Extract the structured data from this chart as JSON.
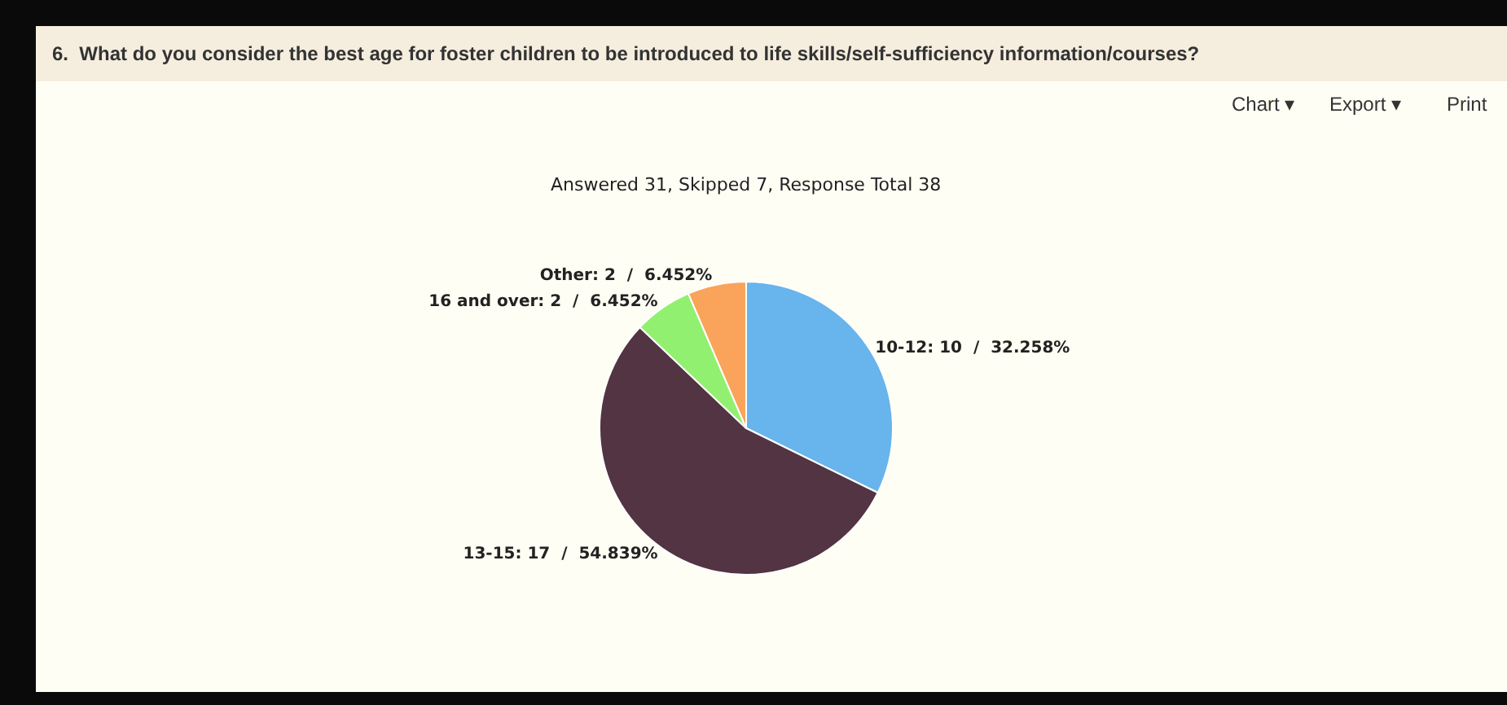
{
  "chart_data": {
    "type": "pie",
    "title": "6.  What do you consider the best age for foster children to be introduced to life skills/self-sufficiency information/courses?",
    "subtitle": "Answered 31, Skipped 7, Response Total 38",
    "categories": [
      "10-12",
      "13-15",
      "16 and over",
      "Other"
    ],
    "values": [
      10,
      17,
      2,
      2
    ],
    "colors": [
      "#68b4ec",
      "#523442",
      "#92f070",
      "#f9a45a"
    ],
    "value_labels": [
      "10  /  32.258%",
      "17  /  54.839%",
      "2  /  6.452%",
      "2  /  6.452%"
    ],
    "annotations": [
      "Chart ▾",
      "Export ▾",
      "Print"
    ],
    "legend": false
  }
}
